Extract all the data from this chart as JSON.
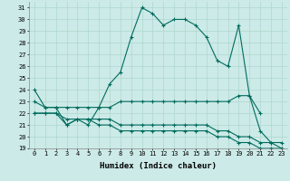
{
  "xlabel": "Humidex (Indice chaleur)",
  "bg_color": "#cceae7",
  "grid_color": "#aed6d0",
  "line_color": "#006c5e",
  "xlim": [
    -0.5,
    23.5
  ],
  "ylim": [
    19,
    31.5
  ],
  "xticks": [
    0,
    1,
    2,
    3,
    4,
    5,
    6,
    7,
    8,
    9,
    10,
    11,
    12,
    13,
    14,
    15,
    16,
    17,
    18,
    19,
    20,
    21,
    22,
    23
  ],
  "yticks": [
    19,
    20,
    21,
    22,
    23,
    24,
    25,
    26,
    27,
    28,
    29,
    30,
    31
  ],
  "line1_x": [
    0,
    1,
    2,
    3,
    4,
    5,
    6,
    7,
    8,
    9,
    10,
    11,
    12,
    13,
    14,
    15,
    16,
    17,
    18,
    19,
    20,
    21,
    22,
    23
  ],
  "line1_y": [
    24.0,
    22.5,
    22.5,
    21.0,
    21.5,
    21.0,
    22.5,
    24.5,
    25.5,
    28.5,
    31.0,
    30.5,
    29.5,
    30.0,
    30.0,
    29.5,
    28.5,
    26.5,
    26.0,
    29.5,
    23.5,
    20.5,
    19.5,
    19.5
  ],
  "line2_x": [
    0,
    1,
    2,
    3,
    4,
    5,
    6,
    7,
    8,
    9,
    10,
    11,
    12,
    13,
    14,
    15,
    16,
    17,
    18,
    19,
    20,
    21
  ],
  "line2_y": [
    23.0,
    22.5,
    22.5,
    22.5,
    22.5,
    22.5,
    22.5,
    22.5,
    23.0,
    23.0,
    23.0,
    23.0,
    23.0,
    23.0,
    23.0,
    23.0,
    23.0,
    23.0,
    23.0,
    23.5,
    23.5,
    22.0
  ],
  "line3_x": [
    0,
    1,
    2,
    3,
    4,
    5,
    6,
    7,
    8,
    9,
    10,
    11,
    12,
    13,
    14,
    15,
    16,
    17,
    18,
    19,
    20,
    21,
    22,
    23
  ],
  "line3_y": [
    22.0,
    22.0,
    22.0,
    21.5,
    21.5,
    21.5,
    21.5,
    21.5,
    21.0,
    21.0,
    21.0,
    21.0,
    21.0,
    21.0,
    21.0,
    21.0,
    21.0,
    20.5,
    20.5,
    20.0,
    20.0,
    19.5,
    19.5,
    19.0
  ],
  "line4_x": [
    0,
    1,
    2,
    3,
    4,
    5,
    6,
    7,
    8,
    9,
    10,
    11,
    12,
    13,
    14,
    15,
    16,
    17,
    18,
    19,
    20,
    21,
    22,
    23
  ],
  "line4_y": [
    22.0,
    22.0,
    22.0,
    21.0,
    21.5,
    21.5,
    21.0,
    21.0,
    20.5,
    20.5,
    20.5,
    20.5,
    20.5,
    20.5,
    20.5,
    20.5,
    20.5,
    20.0,
    20.0,
    19.5,
    19.5,
    19.0,
    19.0,
    19.0
  ]
}
